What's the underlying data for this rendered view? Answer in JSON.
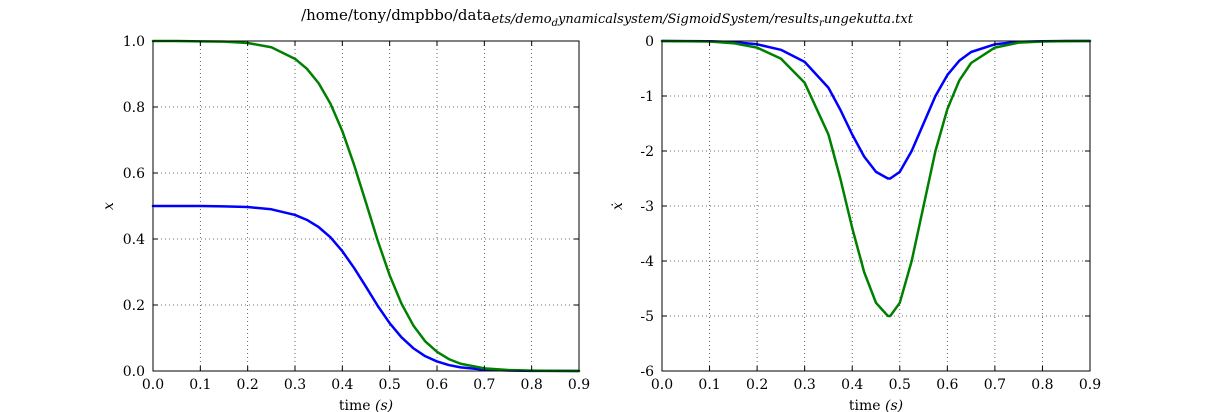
{
  "figure": {
    "title": "/home/tony/dmpbbo/data_sets/demo_dynamicalsystem/SigmoidSystem/results_rungekutta.txt",
    "title_plain": "/home/tony/dmpbbo/data",
    "title_math": "ets/demo",
    "title_math_sub1": "d",
    "title_math_mid": "ynamicalsystem/SigmoidSystem/results",
    "title_math_sub2": "r",
    "title_math_end": "ungekutta.txt"
  },
  "chart_data": [
    {
      "type": "line",
      "xlabel": "time (s)",
      "xlabel_plain": "time ",
      "xlabel_math": "(s)",
      "ylabel": "x",
      "xlim": [
        0.0,
        0.9
      ],
      "ylim": [
        0.0,
        1.0
      ],
      "xticks": [
        0.0,
        0.1,
        0.2,
        0.3,
        0.4,
        0.5,
        0.6,
        0.7,
        0.8,
        0.9
      ],
      "xtick_labels": [
        "0.0",
        "0.1",
        "0.2",
        "0.3",
        "0.4",
        "0.5",
        "0.6",
        "0.7",
        "0.8",
        "0.9"
      ],
      "yticks": [
        0.0,
        0.2,
        0.4,
        0.6,
        0.8,
        1.0
      ],
      "ytick_labels": [
        "0.0",
        "0.2",
        "0.4",
        "0.6",
        "0.8",
        "1.0"
      ],
      "grid": true,
      "x": [
        0.0,
        0.05,
        0.1,
        0.15,
        0.2,
        0.25,
        0.3,
        0.325,
        0.35,
        0.375,
        0.4,
        0.425,
        0.45,
        0.475,
        0.5,
        0.525,
        0.55,
        0.575,
        0.6,
        0.625,
        0.65,
        0.7,
        0.75,
        0.8,
        0.85,
        0.9
      ],
      "series": [
        {
          "color": "#0000ff",
          "values": [
            0.5,
            0.5,
            0.5,
            0.499,
            0.497,
            0.49,
            0.473,
            0.458,
            0.436,
            0.405,
            0.363,
            0.312,
            0.255,
            0.197,
            0.145,
            0.102,
            0.069,
            0.045,
            0.029,
            0.018,
            0.011,
            0.004,
            0.0015,
            0.0005,
            0.0002,
            0.0001
          ]
        },
        {
          "color": "#008000",
          "values": [
            1.0,
            1.0,
            0.999,
            0.998,
            0.994,
            0.981,
            0.946,
            0.916,
            0.872,
            0.81,
            0.727,
            0.624,
            0.51,
            0.394,
            0.29,
            0.204,
            0.138,
            0.09,
            0.058,
            0.036,
            0.022,
            0.008,
            0.003,
            0.001,
            0.0003,
            0.0001
          ]
        }
      ]
    },
    {
      "type": "line",
      "xlabel": "time (s)",
      "xlabel_plain": "time ",
      "xlabel_math": "(s)",
      "ylabel": "ẋ",
      "xlim": [
        0.0,
        0.9
      ],
      "ylim": [
        -6,
        0
      ],
      "xticks": [
        0.0,
        0.1,
        0.2,
        0.3,
        0.4,
        0.5,
        0.6,
        0.7,
        0.8,
        0.9
      ],
      "xtick_labels": [
        "0.0",
        "0.1",
        "0.2",
        "0.3",
        "0.4",
        "0.5",
        "0.6",
        "0.7",
        "0.8",
        "0.9"
      ],
      "yticks": [
        0,
        -1,
        -2,
        -3,
        -4,
        -5,
        -6
      ],
      "ytick_labels": [
        "0",
        "-1",
        "-2",
        "-3",
        "-4",
        "-5",
        "-6"
      ],
      "grid": true,
      "x": [
        0.0,
        0.1,
        0.15,
        0.2,
        0.25,
        0.3,
        0.35,
        0.375,
        0.4,
        0.425,
        0.45,
        0.475,
        0.48,
        0.5,
        0.525,
        0.55,
        0.575,
        0.6,
        0.625,
        0.65,
        0.7,
        0.75,
        0.8,
        0.85,
        0.9
      ],
      "series": [
        {
          "color": "#0000ff",
          "values": [
            0.0,
            -0.005,
            -0.02,
            -0.06,
            -0.16,
            -0.38,
            -0.85,
            -1.25,
            -1.7,
            -2.1,
            -2.38,
            -2.5,
            -2.5,
            -2.38,
            -2.0,
            -1.5,
            -1.0,
            -0.62,
            -0.36,
            -0.2,
            -0.06,
            -0.015,
            -0.004,
            -0.001,
            0.0
          ]
        },
        {
          "color": "#008000",
          "values": [
            0.0,
            -0.01,
            -0.04,
            -0.12,
            -0.32,
            -0.76,
            -1.7,
            -2.5,
            -3.4,
            -4.2,
            -4.76,
            -5.0,
            -5.0,
            -4.76,
            -4.0,
            -3.0,
            -2.0,
            -1.24,
            -0.72,
            -0.4,
            -0.12,
            -0.03,
            -0.008,
            -0.002,
            0.0
          ]
        }
      ]
    }
  ]
}
